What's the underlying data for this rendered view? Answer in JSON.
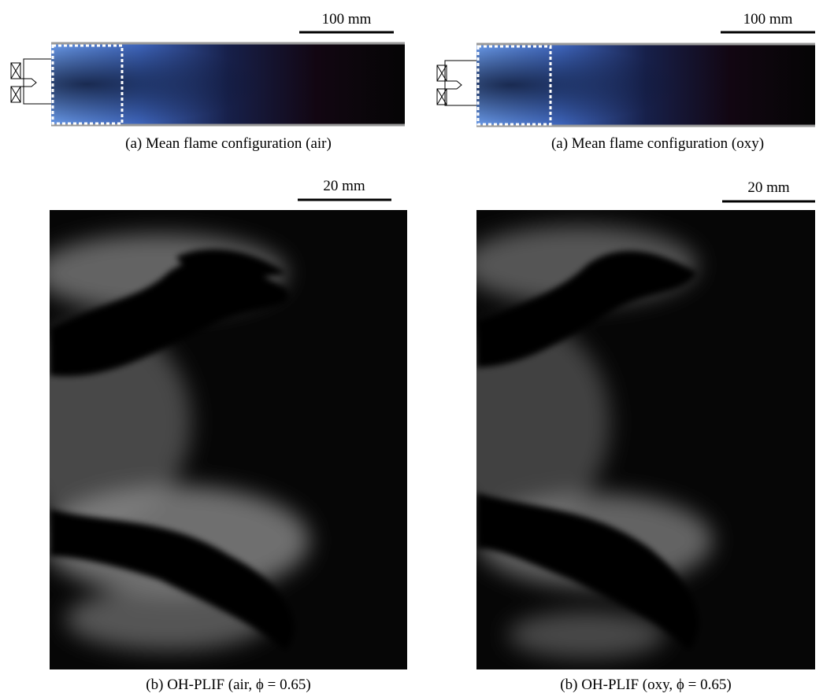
{
  "panels": [
    {
      "scale_label": "100 mm",
      "caption": "(a) Mean flame configuration (air)"
    },
    {
      "scale_label": "100 mm",
      "caption": "(a) Mean flame configuration (oxy)"
    },
    {
      "scale_label": "20 mm",
      "caption": "(b) OH-PLIF (air, ϕ = 0.65)"
    },
    {
      "scale_label": "20 mm",
      "caption": "(b) OH-PLIF (oxy, ϕ = 0.65)"
    }
  ]
}
